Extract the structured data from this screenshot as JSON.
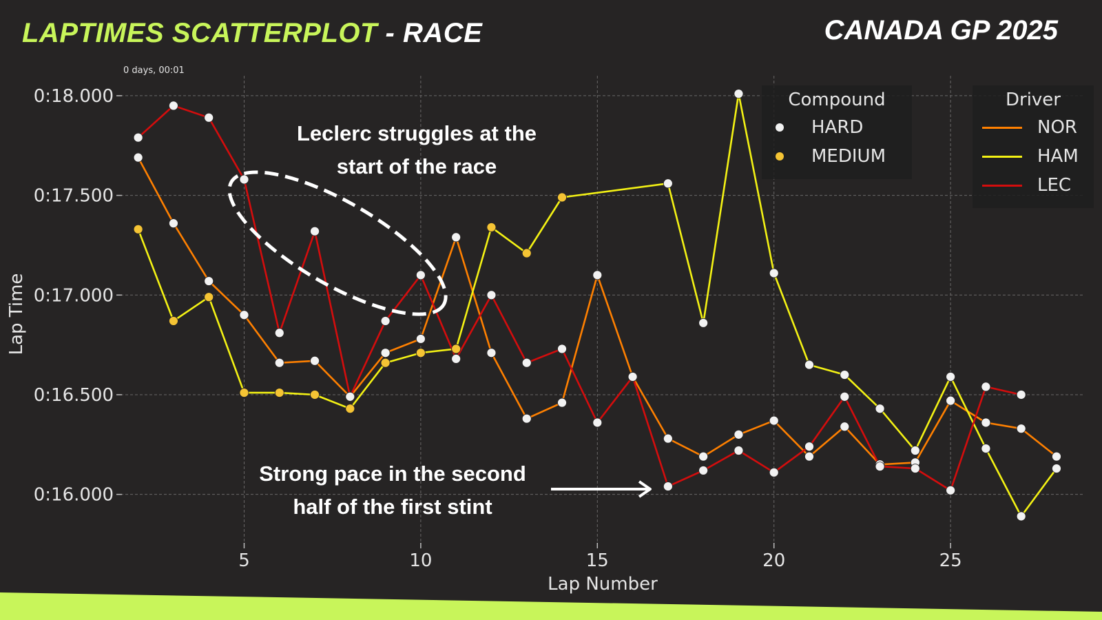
{
  "header": {
    "title_accent": "LAPTIMES SCATTERPLOT",
    "title_rest": " - RACE",
    "event": "CANADA GP 2025",
    "accent_color": "#c8f55a"
  },
  "chart_data": {
    "type": "scatter",
    "xlabel": "Lap Number",
    "ylabel": "Lap Time",
    "offset_label": "0 days, 00:01",
    "xlim": [
      1.5,
      28.8
    ],
    "ylim": [
      15.75,
      18.1
    ],
    "x_ticks": [
      5,
      10,
      15,
      20,
      25
    ],
    "y_ticks": [
      16.0,
      16.5,
      17.0,
      17.5,
      18.0
    ],
    "y_tick_labels": [
      "0:16.000",
      "0:16.500",
      "0:17.000",
      "0:17.500",
      "0:18.000"
    ],
    "grid": true,
    "compound_colors": {
      "HARD": "#f2f2f2",
      "MEDIUM": "#f5c434"
    },
    "compound_legend": {
      "title": "Compound",
      "entries": [
        "HARD",
        "MEDIUM"
      ],
      "placement": "top-right"
    },
    "driver_legend": {
      "title": "Driver",
      "entries": [
        "NOR",
        "HAM",
        "LEC"
      ],
      "placement": "top-right"
    },
    "series": [
      {
        "name": "NOR",
        "color": "#ff8000",
        "points": [
          [
            2,
            17.69,
            "HARD"
          ],
          [
            3,
            17.36,
            "HARD"
          ],
          [
            4,
            17.07,
            "HARD"
          ],
          [
            5,
            16.9,
            "HARD"
          ],
          [
            6,
            16.66,
            "HARD"
          ],
          [
            7,
            16.67,
            "HARD"
          ],
          [
            8,
            16.49,
            "HARD"
          ],
          [
            9,
            16.71,
            "HARD"
          ],
          [
            10,
            16.78,
            "HARD"
          ],
          [
            11,
            17.29,
            "HARD"
          ],
          [
            12,
            16.71,
            "HARD"
          ],
          [
            13,
            16.38,
            "HARD"
          ],
          [
            14,
            16.46,
            "HARD"
          ],
          [
            15,
            17.1,
            "HARD"
          ],
          [
            16,
            16.59,
            "HARD"
          ],
          [
            17,
            16.28,
            "HARD"
          ],
          [
            18,
            16.19,
            "HARD"
          ],
          [
            19,
            16.3,
            "HARD"
          ],
          [
            20,
            16.37,
            "HARD"
          ],
          [
            21,
            16.19,
            "HARD"
          ],
          [
            22,
            16.34,
            "HARD"
          ],
          [
            23,
            16.15,
            "HARD"
          ],
          [
            24,
            16.16,
            "HARD"
          ],
          [
            25,
            16.47,
            "HARD"
          ],
          [
            26,
            16.36,
            "HARD"
          ],
          [
            27,
            16.33,
            "HARD"
          ],
          [
            28,
            16.19,
            "HARD"
          ]
        ]
      },
      {
        "name": "HAM",
        "color": "#f4f214",
        "points": [
          [
            2,
            17.33,
            "MEDIUM"
          ],
          [
            3,
            16.87,
            "MEDIUM"
          ],
          [
            4,
            16.99,
            "MEDIUM"
          ],
          [
            5,
            16.51,
            "MEDIUM"
          ],
          [
            6,
            16.51,
            "MEDIUM"
          ],
          [
            7,
            16.5,
            "MEDIUM"
          ],
          [
            8,
            16.43,
            "MEDIUM"
          ],
          [
            9,
            16.66,
            "MEDIUM"
          ],
          [
            10,
            16.71,
            "MEDIUM"
          ],
          [
            11,
            16.73,
            "MEDIUM"
          ],
          [
            12,
            17.34,
            "MEDIUM"
          ],
          [
            13,
            17.21,
            "MEDIUM"
          ],
          [
            14,
            17.49,
            "MEDIUM"
          ],
          [
            17,
            17.56,
            "HARD"
          ],
          [
            18,
            16.86,
            "HARD"
          ],
          [
            19,
            18.01,
            "HARD"
          ],
          [
            20,
            17.11,
            "HARD"
          ],
          [
            21,
            16.65,
            "HARD"
          ],
          [
            22,
            16.6,
            "HARD"
          ],
          [
            23,
            16.43,
            "HARD"
          ],
          [
            24,
            16.22,
            "HARD"
          ],
          [
            25,
            16.59,
            "HARD"
          ],
          [
            26,
            16.23,
            "HARD"
          ],
          [
            27,
            15.89,
            "HARD"
          ],
          [
            28,
            16.13,
            "HARD"
          ]
        ]
      },
      {
        "name": "LEC",
        "color": "#d40d0d",
        "points": [
          [
            2,
            17.79,
            "HARD"
          ],
          [
            3,
            17.95,
            "HARD"
          ],
          [
            4,
            17.89,
            "HARD"
          ],
          [
            5,
            17.58,
            "HARD"
          ],
          [
            6,
            16.81,
            "HARD"
          ],
          [
            7,
            17.32,
            "HARD"
          ],
          [
            8,
            16.49,
            "HARD"
          ],
          [
            9,
            16.87,
            "HARD"
          ],
          [
            10,
            17.1,
            "HARD"
          ],
          [
            11,
            16.68,
            "HARD"
          ],
          [
            12,
            17.0,
            "HARD"
          ],
          [
            13,
            16.66,
            "HARD"
          ],
          [
            14,
            16.73,
            "HARD"
          ],
          [
            15,
            16.36,
            "HARD"
          ],
          [
            16,
            16.59,
            "HARD"
          ],
          [
            17,
            16.04,
            "HARD"
          ],
          [
            18,
            16.12,
            "HARD"
          ],
          [
            19,
            16.22,
            "HARD"
          ],
          [
            20,
            16.11,
            "HARD"
          ],
          [
            21,
            16.24,
            "HARD"
          ],
          [
            22,
            16.49,
            "HARD"
          ],
          [
            23,
            16.14,
            "HARD"
          ],
          [
            24,
            16.13,
            "HARD"
          ],
          [
            25,
            16.02,
            "HARD"
          ],
          [
            26,
            16.54,
            "HARD"
          ],
          [
            27,
            16.5,
            "HARD"
          ]
        ]
      }
    ],
    "annotations": [
      {
        "text_line1": "Leclerc struggles at the",
        "text_line2": "start of the race",
        "shape": "dashed-ellipse"
      },
      {
        "text_line1": "Strong pace in the second",
        "text_line2": "half of the first stint",
        "shape": "arrow"
      }
    ]
  }
}
